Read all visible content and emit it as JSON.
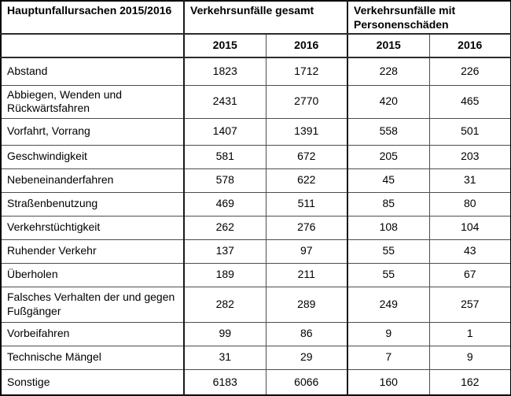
{
  "table": {
    "corner_header": "Hauptunfallursachen 2015/2016",
    "group_headers": [
      "Verkehrsunfälle gesamt",
      "Verkehrsunfälle mit Personenschäden"
    ],
    "year_headers": [
      "2015",
      "2016",
      "2015",
      "2016"
    ],
    "rows": [
      {
        "label": "Abstand",
        "values": [
          "1823",
          "1712",
          "228",
          "226"
        ]
      },
      {
        "label": "Abbiegen, Wenden und Rückwärtsfahren",
        "values": [
          "2431",
          "2770",
          "420",
          "465"
        ]
      },
      {
        "label": "Vorfahrt, Vorrang",
        "values": [
          "1407",
          "1391",
          "558",
          "501"
        ]
      },
      {
        "label": "Geschwindigkeit",
        "values": [
          "581",
          "672",
          "205",
          "203"
        ]
      },
      {
        "label": "Nebeneinanderfahren",
        "values": [
          "578",
          "622",
          "45",
          "31"
        ]
      },
      {
        "label": "Straßenbenutzung",
        "values": [
          "469",
          "511",
          "85",
          "80"
        ]
      },
      {
        "label": "Verkehrstüchtigkeit",
        "values": [
          "262",
          "276",
          "108",
          "104"
        ]
      },
      {
        "label": "Ruhender Verkehr",
        "values": [
          "137",
          "97",
          "55",
          "43"
        ]
      },
      {
        "label": "Überholen",
        "values": [
          "189",
          "211",
          "55",
          "67"
        ]
      },
      {
        "label": "Falsches Verhalten der und gegen Fußgänger",
        "values": [
          "282",
          "289",
          "249",
          "257"
        ]
      },
      {
        "label": "Vorbeifahren",
        "values": [
          "99",
          "86",
          "9",
          "1"
        ]
      },
      {
        "label": "Technische Mängel",
        "values": [
          "31",
          "29",
          "7",
          "9"
        ]
      },
      {
        "label": "Sonstige",
        "values": [
          "6183",
          "6066",
          "160",
          "162"
        ]
      }
    ]
  },
  "colors": {
    "background": "#ffffff",
    "text": "#000000",
    "border_outer": "#000000",
    "border_major": "#1a1a1a",
    "border_inner": "#4d4d4d"
  },
  "chart_data": {
    "type": "table",
    "title": "Hauptunfallursachen 2015/2016",
    "column_groups": [
      "Verkehrsunfälle gesamt",
      "Verkehrsunfälle mit Personenschäden"
    ],
    "columns": [
      "Hauptunfallursache",
      "Gesamt 2015",
      "Gesamt 2016",
      "Personenschäden 2015",
      "Personenschäden 2016"
    ],
    "rows": [
      [
        "Abstand",
        1823,
        1712,
        228,
        226
      ],
      [
        "Abbiegen, Wenden und Rückwärtsfahren",
        2431,
        2770,
        420,
        465
      ],
      [
        "Vorfahrt, Vorrang",
        1407,
        1391,
        558,
        501
      ],
      [
        "Geschwindigkeit",
        581,
        672,
        205,
        203
      ],
      [
        "Nebeneinanderfahren",
        578,
        622,
        45,
        31
      ],
      [
        "Straßenbenutzung",
        469,
        511,
        85,
        80
      ],
      [
        "Verkehrstüchtigkeit",
        262,
        276,
        108,
        104
      ],
      [
        "Ruhender Verkehr",
        137,
        97,
        55,
        43
      ],
      [
        "Überholen",
        189,
        211,
        55,
        67
      ],
      [
        "Falsches Verhalten der und gegen Fußgänger",
        282,
        289,
        249,
        257
      ],
      [
        "Vorbeifahren",
        99,
        86,
        9,
        1
      ],
      [
        "Technische Mängel",
        31,
        29,
        7,
        9
      ],
      [
        "Sonstige",
        6183,
        6066,
        160,
        162
      ]
    ]
  }
}
